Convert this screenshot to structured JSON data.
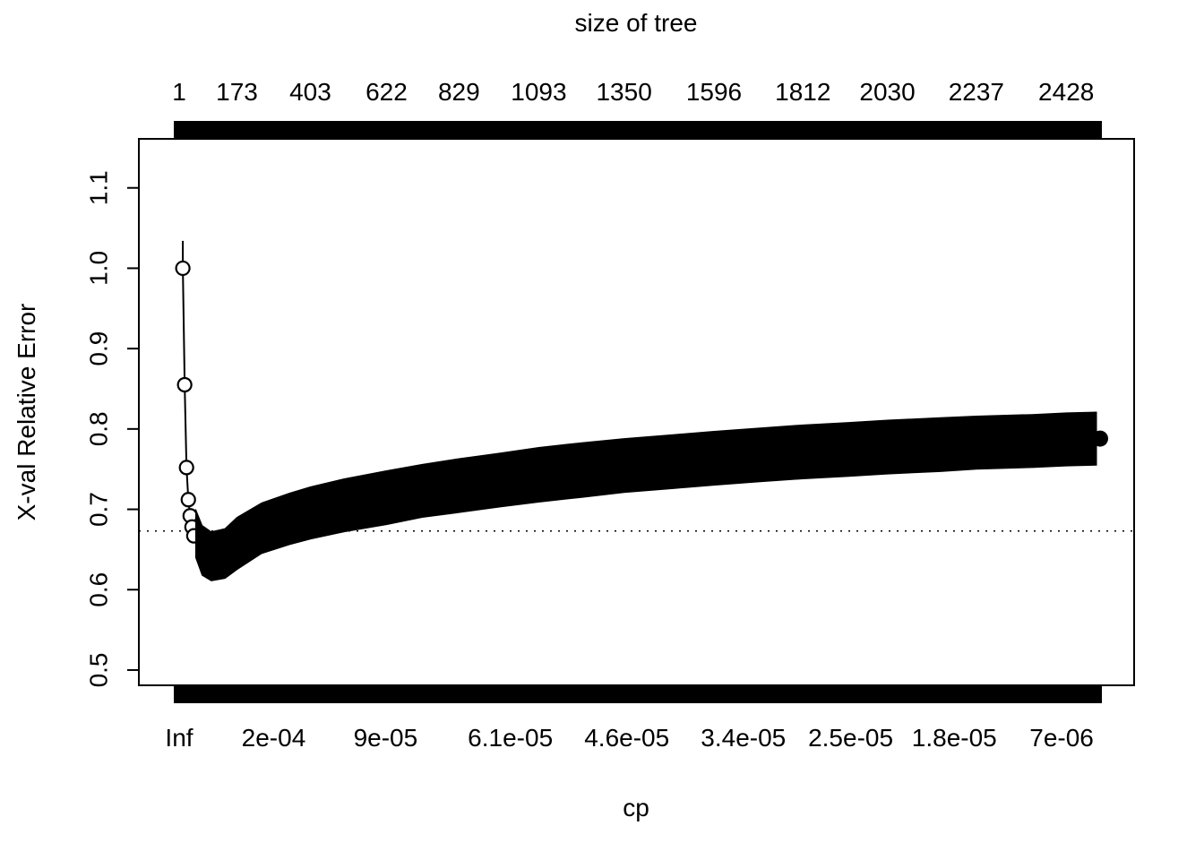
{
  "chart_data": {
    "type": "line",
    "title": "size of tree",
    "xlabel": "cp",
    "ylabel": "X-val Relative Error",
    "ylim": [
      0.481,
      1.161
    ],
    "yticks": [
      0.5,
      0.6,
      0.7,
      0.8,
      0.9,
      1.0,
      1.1
    ],
    "grid": false,
    "legend": false,
    "colors": {
      "foreground": "#000000",
      "background": "#ffffff"
    },
    "top_axis": {
      "label": "size of tree",
      "ticks": [
        {
          "label": "1",
          "pos": 0.0
        },
        {
          "label": "173",
          "pos": 0.063
        },
        {
          "label": "403",
          "pos": 0.143
        },
        {
          "label": "622",
          "pos": 0.226
        },
        {
          "label": "829",
          "pos": 0.305
        },
        {
          "label": "1093",
          "pos": 0.392
        },
        {
          "label": "1350",
          "pos": 0.485
        },
        {
          "label": "1596",
          "pos": 0.583
        },
        {
          "label": "1812",
          "pos": 0.68
        },
        {
          "label": "2030",
          "pos": 0.772
        },
        {
          "label": "2237",
          "pos": 0.869
        },
        {
          "label": "2428",
          "pos": 0.967
        }
      ]
    },
    "bottom_axis": {
      "label": "cp",
      "ticks": [
        {
          "label": "Inf",
          "pos": 0.0
        },
        {
          "label": "2e-04",
          "pos": 0.103
        },
        {
          "label": "9e-05",
          "pos": 0.225
        },
        {
          "label": "6.1e-05",
          "pos": 0.361
        },
        {
          "label": "4.6e-05",
          "pos": 0.488
        },
        {
          "label": "3.4e-05",
          "pos": 0.615
        },
        {
          "label": "2.5e-05",
          "pos": 0.732
        },
        {
          "label": "1.8e-05",
          "pos": 0.845
        },
        {
          "label": "7e-06",
          "pos": 0.962
        }
      ]
    },
    "reference_line_y": 0.673,
    "lead_errorbar_top": 1.034,
    "lead_points": [
      {
        "x": 0.004,
        "y": 1.0
      },
      {
        "x": 0.006,
        "y": 0.855
      },
      {
        "x": 0.008,
        "y": 0.752
      },
      {
        "x": 0.01,
        "y": 0.712
      },
      {
        "x": 0.012,
        "y": 0.692
      },
      {
        "x": 0.014,
        "y": 0.678
      },
      {
        "x": 0.016,
        "y": 0.667
      }
    ],
    "band": [
      {
        "x": 0.018,
        "lo": 0.64,
        "hi": 0.7
      },
      {
        "x": 0.025,
        "lo": 0.618,
        "hi": 0.68
      },
      {
        "x": 0.035,
        "lo": 0.611,
        "hi": 0.672
      },
      {
        "x": 0.05,
        "lo": 0.614,
        "hi": 0.676
      },
      {
        "x": 0.063,
        "lo": 0.625,
        "hi": 0.69
      },
      {
        "x": 0.09,
        "lo": 0.645,
        "hi": 0.708
      },
      {
        "x": 0.12,
        "lo": 0.656,
        "hi": 0.72
      },
      {
        "x": 0.143,
        "lo": 0.663,
        "hi": 0.728
      },
      {
        "x": 0.18,
        "lo": 0.672,
        "hi": 0.738
      },
      {
        "x": 0.226,
        "lo": 0.681,
        "hi": 0.748
      },
      {
        "x": 0.265,
        "lo": 0.69,
        "hi": 0.756
      },
      {
        "x": 0.305,
        "lo": 0.696,
        "hi": 0.763
      },
      {
        "x": 0.35,
        "lo": 0.703,
        "hi": 0.77
      },
      {
        "x": 0.392,
        "lo": 0.709,
        "hi": 0.777
      },
      {
        "x": 0.44,
        "lo": 0.715,
        "hi": 0.783
      },
      {
        "x": 0.485,
        "lo": 0.721,
        "hi": 0.788
      },
      {
        "x": 0.54,
        "lo": 0.726,
        "hi": 0.793
      },
      {
        "x": 0.583,
        "lo": 0.73,
        "hi": 0.797
      },
      {
        "x": 0.63,
        "lo": 0.734,
        "hi": 0.801
      },
      {
        "x": 0.68,
        "lo": 0.738,
        "hi": 0.805
      },
      {
        "x": 0.73,
        "lo": 0.741,
        "hi": 0.808
      },
      {
        "x": 0.772,
        "lo": 0.744,
        "hi": 0.811
      },
      {
        "x": 0.83,
        "lo": 0.747,
        "hi": 0.814
      },
      {
        "x": 0.869,
        "lo": 0.75,
        "hi": 0.816
      },
      {
        "x": 0.93,
        "lo": 0.752,
        "hi": 0.818
      },
      {
        "x": 0.967,
        "lo": 0.754,
        "hi": 0.82
      },
      {
        "x": 1.0,
        "lo": 0.755,
        "hi": 0.821
      }
    ],
    "final_point": {
      "x": 1.0,
      "y": 0.788
    }
  }
}
